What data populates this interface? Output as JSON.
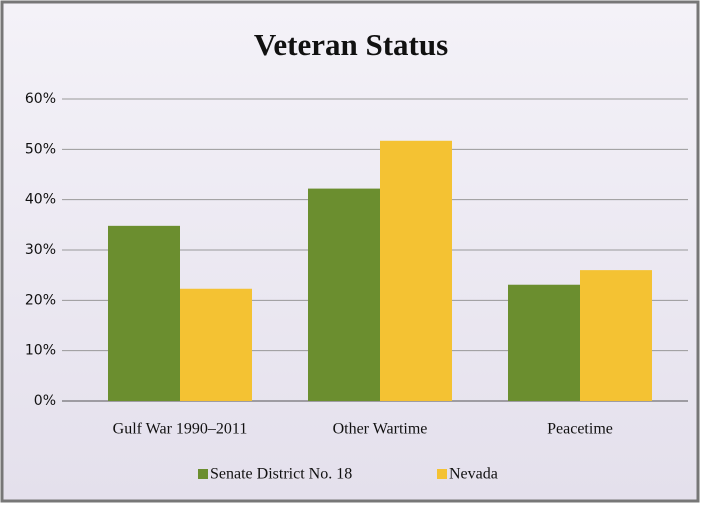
{
  "chart_data": {
    "type": "bar",
    "title": "Veteran Status",
    "categories": [
      "Gulf War 1990–2011",
      "Other Wartime",
      "Peacetime"
    ],
    "series": [
      {
        "name": "Senate District No. 18",
        "color": "#6b8e2f",
        "values": [
          34.8,
          42.2,
          23.1
        ]
      },
      {
        "name": "Nevada",
        "color": "#f4c233",
        "values": [
          22.3,
          51.7,
          26.0
        ]
      }
    ],
    "ylim": [
      0,
      60
    ],
    "yticks": [
      {
        "value": 0,
        "label": "0%"
      },
      {
        "value": 10,
        "label": "10%"
      },
      {
        "value": 20,
        "label": "20%"
      },
      {
        "value": 30,
        "label": "30%"
      },
      {
        "value": 40,
        "label": "40%"
      },
      {
        "value": 50,
        "label": "50%"
      },
      {
        "value": 60,
        "label": "60%"
      }
    ],
    "grid": true,
    "legend": "bottom"
  }
}
